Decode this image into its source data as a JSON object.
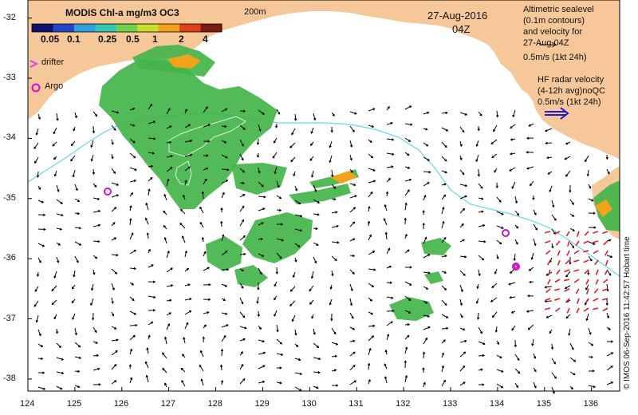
{
  "colorbar": {
    "title": "MODIS Chl-a mg/m3 OC3",
    "ticks": [
      "0.05",
      "0.1",
      "0.25",
      "0.5",
      "1",
      "2",
      "4"
    ],
    "colors": [
      "#10106f",
      "#2545c8",
      "#2f9fe0",
      "#34c6b4",
      "#6fd04e",
      "#c9dd2a",
      "#f3a31b",
      "#e0401a",
      "#7d1a12"
    ]
  },
  "map": {
    "contour_label": "200m",
    "date": "27-Aug-2016",
    "time": "04Z",
    "land_color": "#f6c798",
    "isobath_color": "#69d6e6",
    "chl_color_main": "#44b44a",
    "x_ticks": [
      "124",
      "125",
      "126",
      "127",
      "128",
      "129",
      "130",
      "131",
      "132",
      "133",
      "134",
      "135",
      "136"
    ],
    "y_ticks": [
      "-32",
      "-33",
      "-34",
      "-35",
      "-36",
      "-37",
      "-38"
    ],
    "xlim": [
      124,
      136.6
    ],
    "ylim": [
      -38.2,
      -31.7
    ]
  },
  "legend": {
    "drifter_label": "drifter",
    "argo_label": "Argo",
    "altimetry_lines": [
      "Altimetric sealevel",
      "(0.1m contours)",
      "and velocity for",
      "27-Aug 04Z",
      "0.5m/s (1kt 24h)"
    ],
    "hf_lines": [
      "HF radar velocity",
      "(4-12h avg)noQC",
      "0.5m/s (1kt 24h)"
    ],
    "drifter_color": "#e040e0",
    "argo_color": "#d010d0",
    "hf_color": "#1a1ad0",
    "hf_arrow_color": "#e02020"
  },
  "credit": "© IMOS 06-Sep-2016 11:42:57 Hobart time"
}
